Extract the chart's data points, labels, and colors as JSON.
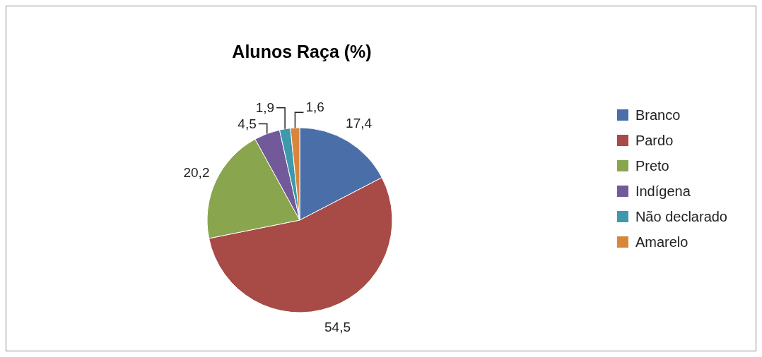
{
  "chart_data": {
    "type": "pie",
    "title": "Alunos Raça (%)",
    "categories": [
      "Branco",
      "Pardo",
      "Preto",
      "Indígena",
      "Não declarado",
      "Amarelo"
    ],
    "values": [
      17.4,
      54.5,
      20.2,
      4.5,
      1.9,
      1.6
    ],
    "colors": [
      "#4a6fa8",
      "#a84a46",
      "#89a54e",
      "#72599a",
      "#3f99ad",
      "#d9863d"
    ],
    "data_labels": true,
    "value_labels": [
      "17,4",
      "54,5",
      "20,2",
      "4,5",
      "1,9",
      "1,6"
    ],
    "legend": "right"
  }
}
